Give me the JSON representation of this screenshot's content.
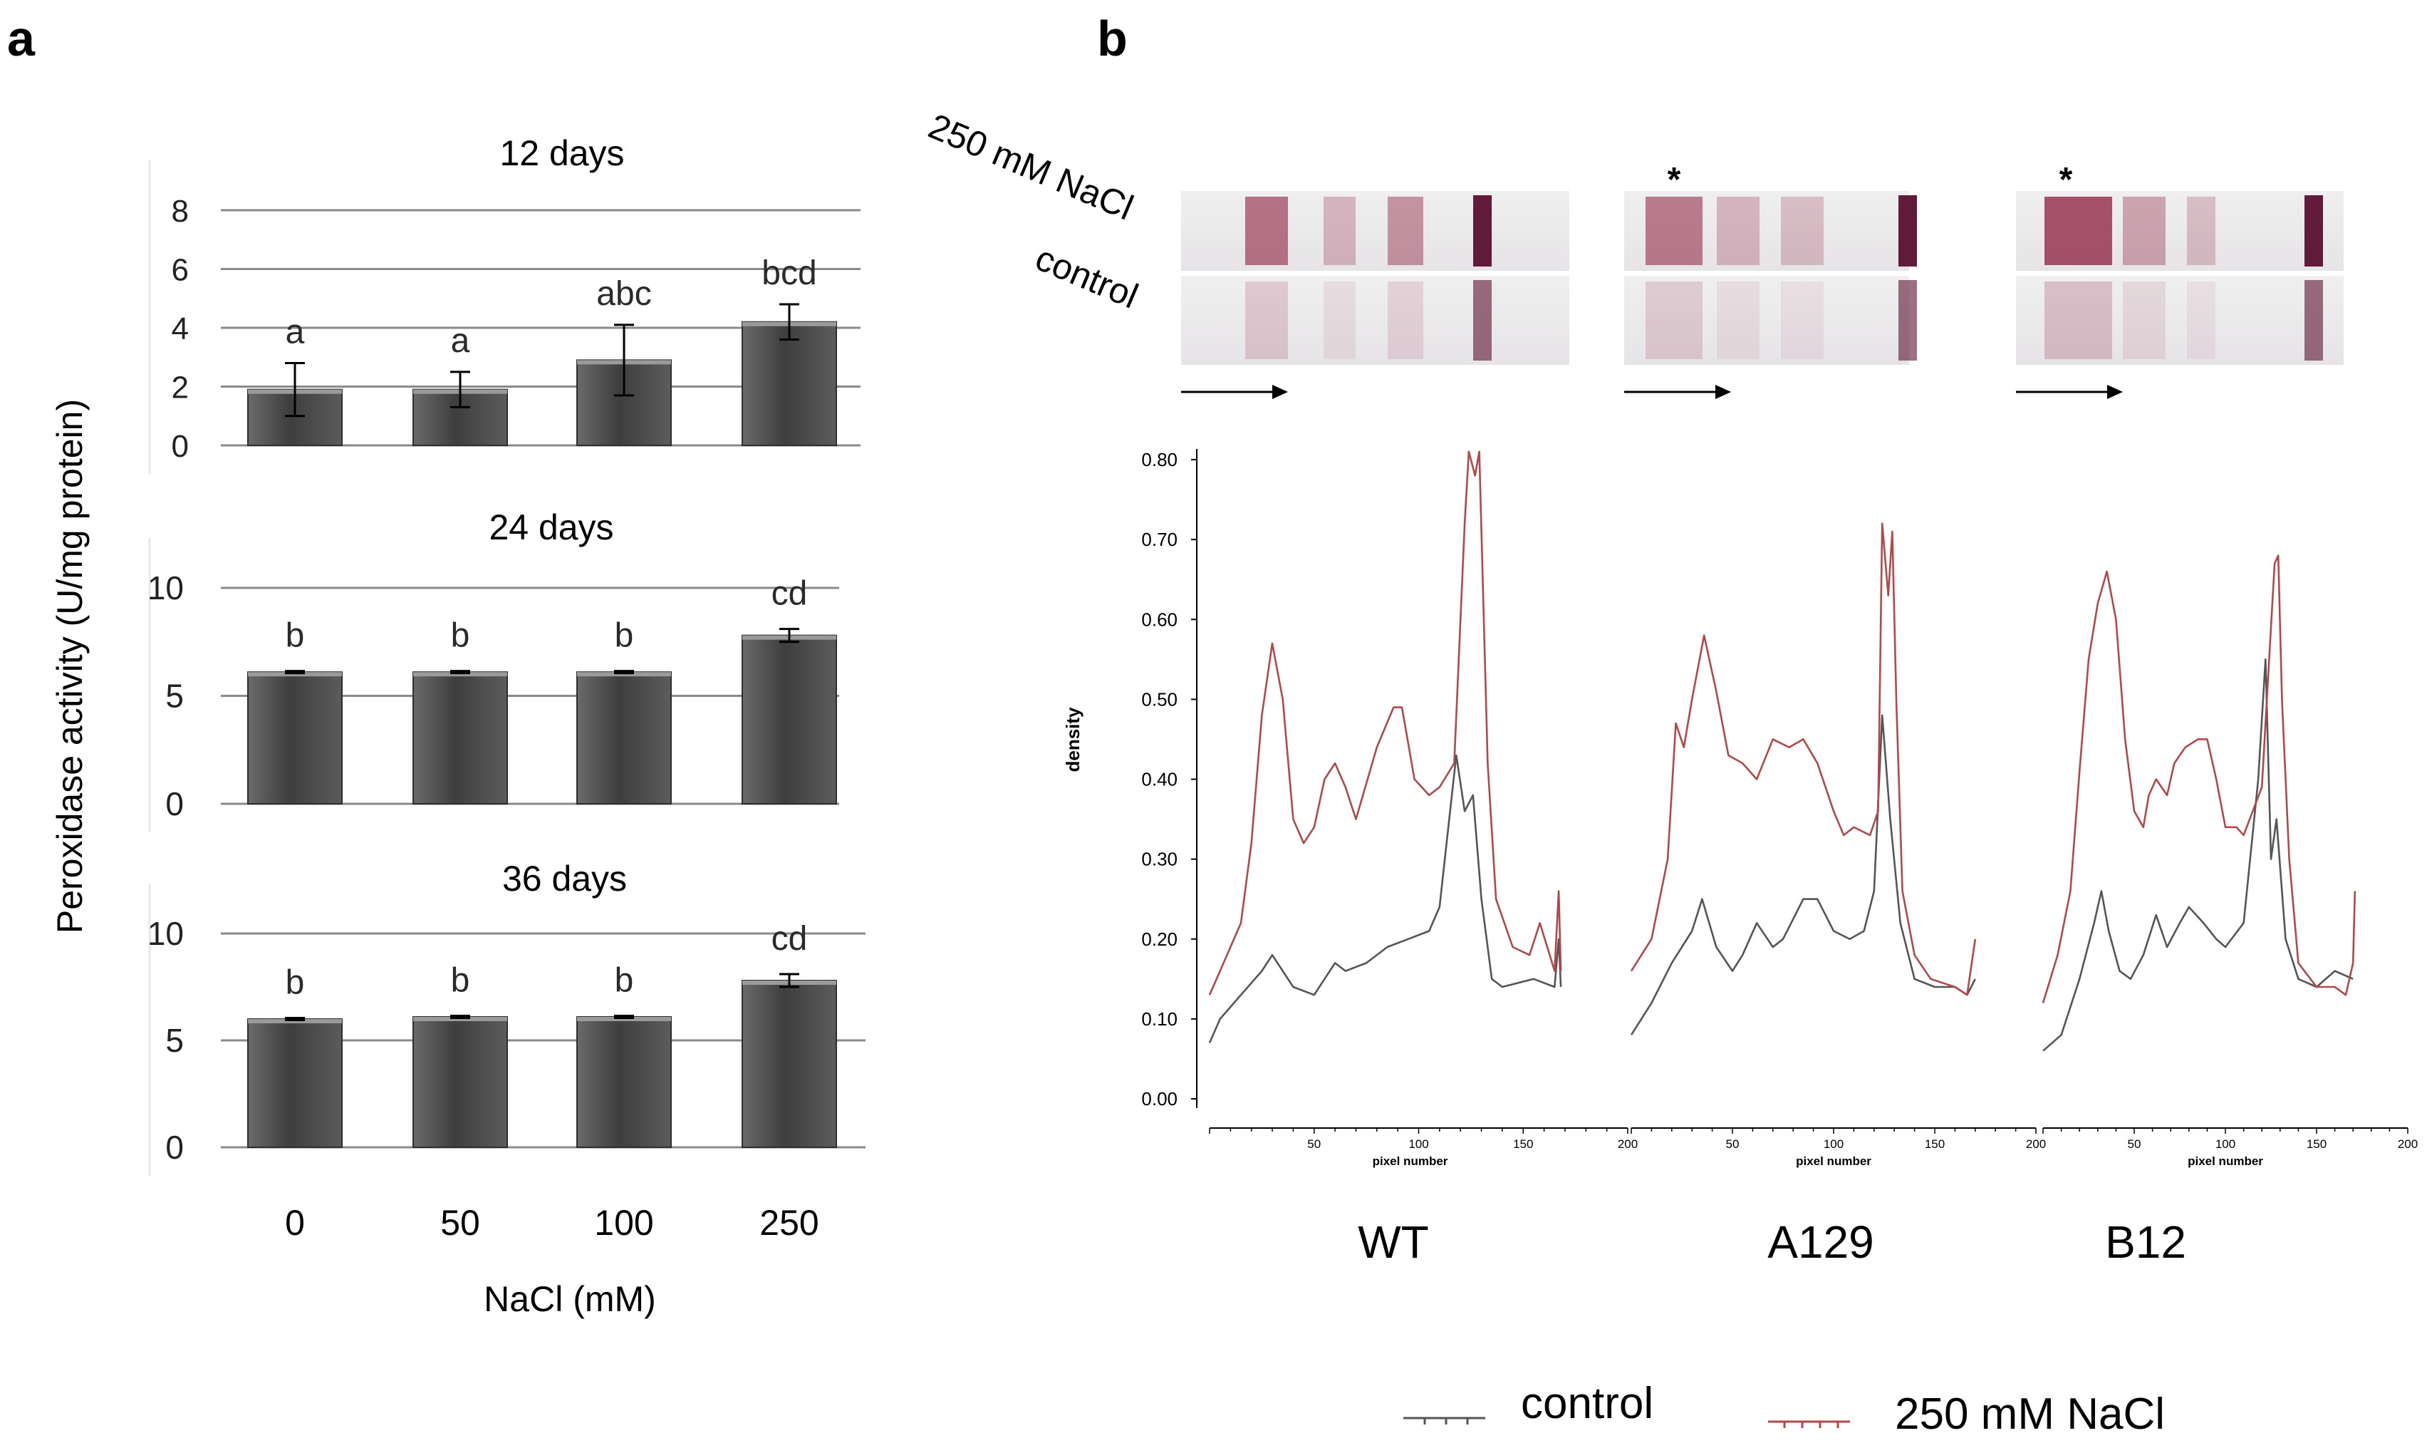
{
  "panel_labels": {
    "a": "a",
    "b": "b"
  },
  "panel_a": {
    "ylabel": "Peroxidase activity (U/mg protein)",
    "xlabel": "NaCl (mM)",
    "categories": [
      "0",
      "50",
      "100",
      "250"
    ]
  },
  "panel_b": {
    "gel_row_labels": [
      "250 mM NaCl",
      "control"
    ],
    "star": "*",
    "densitometry": {
      "ylabel": "density",
      "xlabel": "pixel number"
    },
    "genotypes": [
      "WT",
      "A129",
      "B12"
    ],
    "legend": [
      "control",
      "250 mM NaCl"
    ]
  },
  "colors": {
    "bar": "#4a4a4a",
    "control_line": "#555555",
    "nacl_line": "#b0484c",
    "band": "#8e2040"
  },
  "chart_data": [
    {
      "type": "bar",
      "title": "12 days",
      "categories": [
        "0",
        "50",
        "100",
        "250"
      ],
      "values": [
        1.9,
        1.9,
        2.9,
        4.2
      ],
      "errors": [
        0.9,
        0.6,
        1.2,
        0.6
      ],
      "letters": [
        "a",
        "a",
        "abc",
        "bcd"
      ],
      "yticks": [
        "8",
        "6",
        "4",
        "2",
        "0"
      ],
      "ylim": [
        0,
        8
      ]
    },
    {
      "type": "bar",
      "title": "24 days",
      "categories": [
        "0",
        "50",
        "100",
        "250"
      ],
      "values": [
        6.1,
        6.1,
        6.1,
        7.8
      ],
      "errors": [
        0.05,
        0.05,
        0.05,
        0.3
      ],
      "letters": [
        "b",
        "b",
        "b",
        "cd"
      ],
      "yticks": [
        "10",
        "5",
        "0"
      ],
      "ylim": [
        0,
        10
      ]
    },
    {
      "type": "bar",
      "title": "36 days",
      "categories": [
        "0",
        "50",
        "100",
        "250"
      ],
      "values": [
        6.0,
        6.1,
        6.1,
        7.8
      ],
      "errors": [
        0.05,
        0.05,
        0.05,
        0.3
      ],
      "letters": [
        "b",
        "b",
        "b",
        "cd"
      ],
      "yticks": [
        "10",
        "5",
        "0"
      ],
      "ylim": [
        0,
        10
      ]
    },
    {
      "type": "line",
      "name": "WT",
      "ylabel": "density",
      "xlabel": "pixel number",
      "yticks": [
        "0.80",
        "0.70",
        "0.60",
        "0.50",
        "0.40",
        "0.30",
        "0.20",
        "0.10",
        "0.00"
      ],
      "xticks": [
        "50",
        "100",
        "150",
        "200"
      ],
      "xlim": [
        0,
        200
      ],
      "ylim": [
        0,
        0.8
      ],
      "series": [
        {
          "name": "control",
          "x": [
            0,
            5,
            15,
            25,
            30,
            40,
            50,
            55,
            60,
            65,
            75,
            85,
            95,
            105,
            110,
            118,
            122,
            126,
            130,
            135,
            140,
            155,
            165,
            167,
            168
          ],
          "y": [
            0.07,
            0.1,
            0.13,
            0.16,
            0.18,
            0.14,
            0.13,
            0.15,
            0.17,
            0.16,
            0.17,
            0.19,
            0.2,
            0.21,
            0.24,
            0.43,
            0.36,
            0.38,
            0.25,
            0.15,
            0.14,
            0.15,
            0.14,
            0.2,
            0.14
          ]
        },
        {
          "name": "250 mM NaCl",
          "x": [
            0,
            5,
            15,
            20,
            25,
            30,
            35,
            40,
            45,
            50,
            55,
            60,
            65,
            70,
            80,
            88,
            92,
            98,
            105,
            110,
            117,
            122,
            124,
            127,
            129,
            133,
            137,
            145,
            153,
            158,
            165,
            167,
            168
          ],
          "y": [
            0.13,
            0.16,
            0.22,
            0.32,
            0.48,
            0.57,
            0.5,
            0.35,
            0.32,
            0.34,
            0.4,
            0.42,
            0.39,
            0.35,
            0.44,
            0.49,
            0.49,
            0.4,
            0.38,
            0.39,
            0.42,
            0.72,
            0.81,
            0.78,
            0.81,
            0.42,
            0.25,
            0.19,
            0.18,
            0.22,
            0.16,
            0.26,
            0.16
          ]
        }
      ]
    },
    {
      "type": "line",
      "name": "A129",
      "xticks": [
        "50",
        "100",
        "150",
        "200"
      ],
      "xlim": [
        0,
        200
      ],
      "ylim": [
        0,
        0.8
      ],
      "series": [
        {
          "name": "control",
          "x": [
            0,
            10,
            20,
            30,
            35,
            42,
            50,
            55,
            62,
            70,
            75,
            85,
            92,
            100,
            108,
            115,
            120,
            124,
            128,
            133,
            140,
            150,
            160,
            166,
            170
          ],
          "y": [
            0.08,
            0.12,
            0.17,
            0.21,
            0.25,
            0.19,
            0.16,
            0.18,
            0.22,
            0.19,
            0.2,
            0.25,
            0.25,
            0.21,
            0.2,
            0.21,
            0.26,
            0.48,
            0.35,
            0.22,
            0.15,
            0.14,
            0.14,
            0.13,
            0.15
          ]
        },
        {
          "name": "250 mM NaCl",
          "x": [
            0,
            10,
            18,
            22,
            26,
            30,
            36,
            42,
            48,
            55,
            62,
            70,
            78,
            85,
            92,
            100,
            105,
            110,
            118,
            122,
            124,
            127,
            129,
            131,
            134,
            140,
            148,
            160,
            166,
            170
          ],
          "y": [
            0.16,
            0.2,
            0.3,
            0.47,
            0.44,
            0.5,
            0.58,
            0.51,
            0.43,
            0.42,
            0.4,
            0.45,
            0.44,
            0.45,
            0.42,
            0.36,
            0.33,
            0.34,
            0.33,
            0.36,
            0.72,
            0.63,
            0.71,
            0.5,
            0.26,
            0.18,
            0.15,
            0.14,
            0.13,
            0.2
          ]
        }
      ]
    },
    {
      "type": "line",
      "name": "B12",
      "xticks": [
        "50",
        "100",
        "150",
        "200"
      ],
      "xlim": [
        0,
        200
      ],
      "ylim": [
        0,
        0.8
      ],
      "series": [
        {
          "name": "control",
          "x": [
            0,
            10,
            20,
            28,
            32,
            36,
            42,
            48,
            55,
            62,
            68,
            75,
            80,
            88,
            95,
            100,
            110,
            118,
            122,
            125,
            128,
            133,
            140,
            150,
            160,
            170
          ],
          "y": [
            0.06,
            0.08,
            0.15,
            0.22,
            0.26,
            0.21,
            0.16,
            0.15,
            0.18,
            0.23,
            0.19,
            0.22,
            0.24,
            0.22,
            0.2,
            0.19,
            0.22,
            0.4,
            0.55,
            0.3,
            0.35,
            0.2,
            0.15,
            0.14,
            0.16,
            0.15
          ]
        },
        {
          "name": "250 mM NaCl",
          "x": [
            0,
            8,
            15,
            20,
            25,
            30,
            35,
            40,
            45,
            50,
            55,
            58,
            62,
            68,
            72,
            78,
            85,
            90,
            95,
            100,
            106,
            110,
            115,
            120,
            124,
            127,
            129,
            131,
            135,
            140,
            150,
            160,
            166,
            170,
            171
          ],
          "y": [
            0.12,
            0.18,
            0.26,
            0.41,
            0.55,
            0.62,
            0.66,
            0.6,
            0.45,
            0.36,
            0.34,
            0.38,
            0.4,
            0.38,
            0.42,
            0.44,
            0.45,
            0.45,
            0.4,
            0.34,
            0.34,
            0.33,
            0.36,
            0.39,
            0.55,
            0.67,
            0.68,
            0.5,
            0.3,
            0.17,
            0.14,
            0.14,
            0.13,
            0.17,
            0.26
          ]
        }
      ]
    }
  ]
}
